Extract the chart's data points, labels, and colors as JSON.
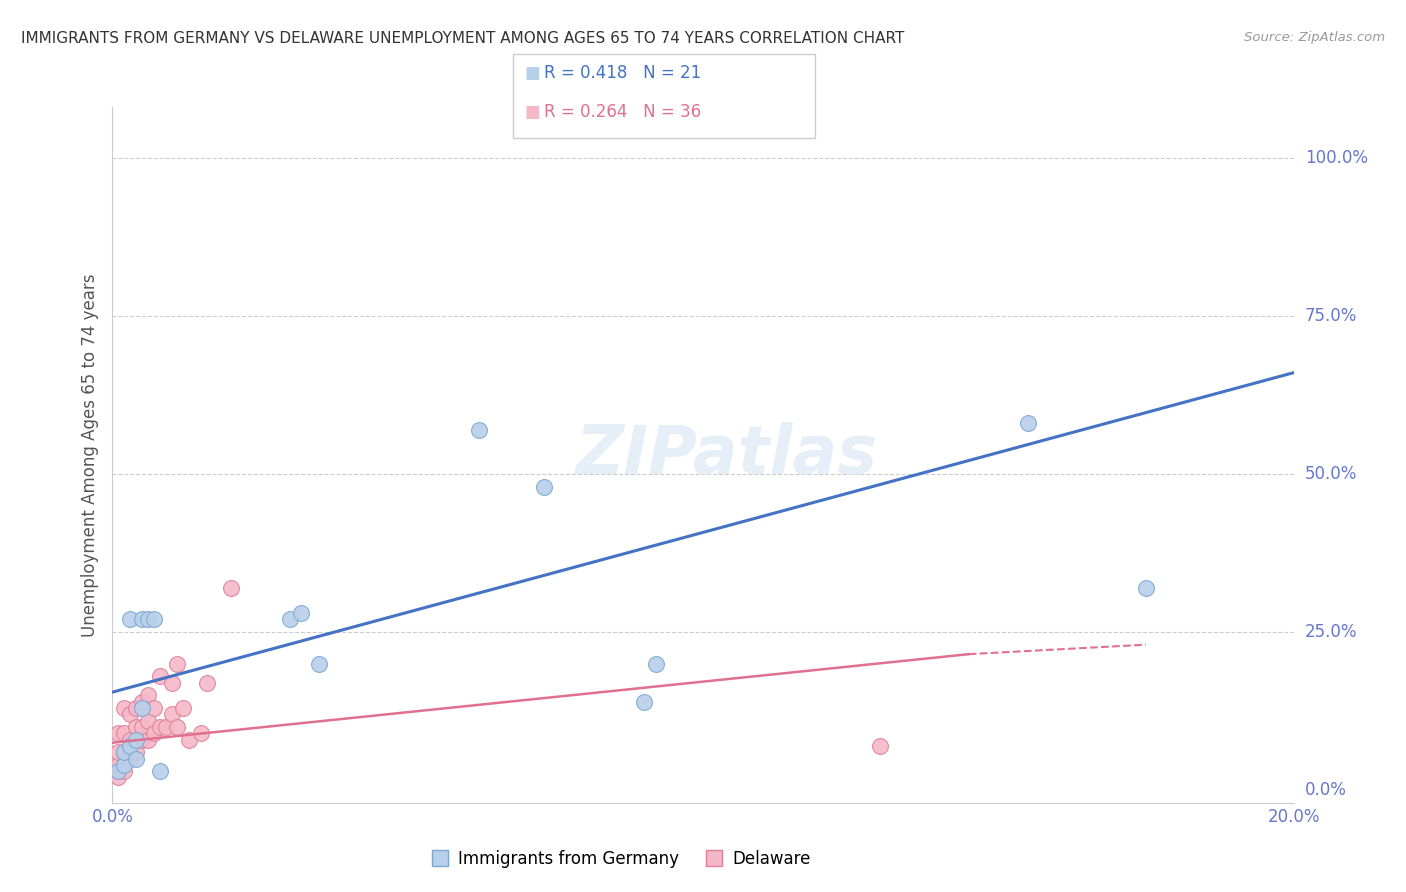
{
  "title": "IMMIGRANTS FROM GERMANY VS DELAWARE UNEMPLOYMENT AMONG AGES 65 TO 74 YEARS CORRELATION CHART",
  "source": "Source: ZipAtlas.com",
  "ylabel": "Unemployment Among Ages 65 to 74 years",
  "xlim": [
    0.0,
    0.2
  ],
  "ylim": [
    -0.02,
    1.08
  ],
  "yticks": [
    0.0,
    0.25,
    0.5,
    0.75,
    1.0
  ],
  "yticklabels": [
    "",
    "25.0%",
    "50.0%",
    "75.0%",
    "100.0%"
  ],
  "xticks": [
    0.0,
    0.04,
    0.08,
    0.12,
    0.16,
    0.2
  ],
  "xticklabels": [
    "0.0%",
    "",
    "",
    "",
    "",
    "20.0%"
  ],
  "blue_R": 0.418,
  "blue_N": 21,
  "pink_R": 0.264,
  "pink_N": 36,
  "blue_scatter_color": "#b8d0ea",
  "blue_scatter_edge": "#7ba7d0",
  "pink_scatter_color": "#f4b8c8",
  "pink_scatter_edge": "#e08098",
  "blue_line_color": "#4472c4",
  "pink_line_color": "#e07090",
  "legend_label_blue": "Immigrants from Germany",
  "legend_label_pink": "Delaware",
  "watermark": "ZIPatlas",
  "blue_x": [
    0.001,
    0.002,
    0.002,
    0.003,
    0.003,
    0.004,
    0.004,
    0.005,
    0.005,
    0.006,
    0.007,
    0.008,
    0.03,
    0.032,
    0.035,
    0.062,
    0.073,
    0.09,
    0.092,
    0.155,
    0.175
  ],
  "blue_y": [
    0.03,
    0.04,
    0.06,
    0.07,
    0.27,
    0.05,
    0.08,
    0.13,
    0.27,
    0.27,
    0.27,
    0.03,
    0.27,
    0.28,
    0.2,
    0.57,
    0.48,
    0.14,
    0.2,
    0.58,
    0.32
  ],
  "pink_x": [
    0.0,
    0.001,
    0.001,
    0.001,
    0.001,
    0.002,
    0.002,
    0.002,
    0.002,
    0.003,
    0.003,
    0.003,
    0.004,
    0.004,
    0.004,
    0.005,
    0.005,
    0.005,
    0.006,
    0.006,
    0.006,
    0.007,
    0.007,
    0.008,
    0.008,
    0.009,
    0.01,
    0.01,
    0.011,
    0.011,
    0.012,
    0.013,
    0.015,
    0.016,
    0.02,
    0.13
  ],
  "pink_y": [
    0.03,
    0.02,
    0.04,
    0.06,
    0.09,
    0.03,
    0.06,
    0.09,
    0.13,
    0.05,
    0.08,
    0.12,
    0.06,
    0.1,
    0.13,
    0.08,
    0.1,
    0.14,
    0.08,
    0.11,
    0.15,
    0.09,
    0.13,
    0.1,
    0.18,
    0.1,
    0.12,
    0.17,
    0.1,
    0.2,
    0.13,
    0.08,
    0.09,
    0.17,
    0.32,
    0.07
  ],
  "blue_line_x0": 0.0,
  "blue_line_y0": 0.155,
  "blue_line_x1": 0.2,
  "blue_line_y1": 0.66,
  "pink_line_x0": 0.0,
  "pink_line_y0": 0.075,
  "pink_line_x1": 0.145,
  "pink_line_y1": 0.215
}
